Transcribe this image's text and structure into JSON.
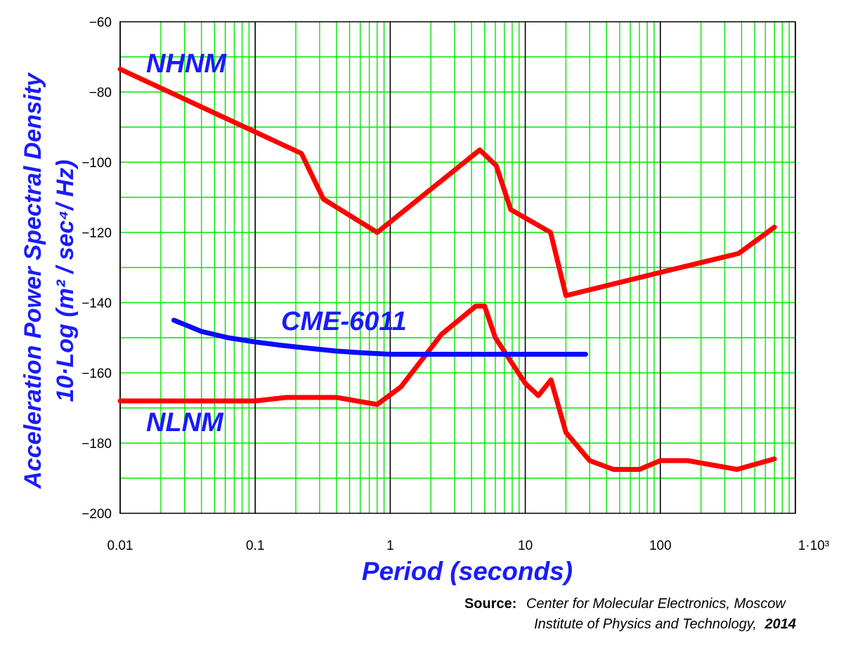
{
  "chart_data": {
    "type": "line",
    "xscale": "log",
    "xlim": [
      0.01,
      1000
    ],
    "ylim": [
      -200,
      -60
    ],
    "grid": true,
    "xlabel": "Period (seconds)",
    "ylabel_line1": "Acceleration Power Spectral Density",
    "ylabel_line2": "10·Log (m² / sec⁴/ Hz)",
    "x_ticks": [
      {
        "value": 0.01,
        "label": "0.01"
      },
      {
        "value": 0.1,
        "label": "0.1"
      },
      {
        "value": 1,
        "label": "1"
      },
      {
        "value": 10,
        "label": "10"
      },
      {
        "value": 100,
        "label": "100"
      },
      {
        "value": 1000,
        "label": "1·10³"
      }
    ],
    "y_ticks": [
      -60,
      -80,
      -100,
      -120,
      -140,
      -160,
      -180,
      -200
    ],
    "series": [
      {
        "name": "NHNM",
        "color": "#ff0000",
        "points": [
          [
            0.01,
            -73.5
          ],
          [
            0.22,
            -97.5
          ],
          [
            0.32,
            -110.5
          ],
          [
            0.8,
            -120
          ],
          [
            4.6,
            -96.5
          ],
          [
            6.1,
            -101
          ],
          [
            7.8,
            -113.5
          ],
          [
            15.4,
            -120
          ],
          [
            20,
            -138
          ],
          [
            110,
            -131
          ],
          [
            380,
            -126
          ],
          [
            700,
            -118.5
          ]
        ]
      },
      {
        "name": "NLNM",
        "color": "#ff0000",
        "points": [
          [
            0.01,
            -168
          ],
          [
            0.1,
            -168
          ],
          [
            0.17,
            -167
          ],
          [
            0.4,
            -167
          ],
          [
            0.8,
            -169
          ],
          [
            1.2,
            -164
          ],
          [
            2.4,
            -149
          ],
          [
            4.3,
            -141
          ],
          [
            5.0,
            -141
          ],
          [
            6.0,
            -150
          ],
          [
            10,
            -163
          ],
          [
            12.5,
            -166.5
          ],
          [
            15.5,
            -162
          ],
          [
            20,
            -177
          ],
          [
            30,
            -185
          ],
          [
            45,
            -187.5
          ],
          [
            70,
            -187.5
          ],
          [
            100,
            -185
          ],
          [
            160,
            -185
          ],
          [
            370,
            -187.5
          ],
          [
            700,
            -184.5
          ]
        ]
      },
      {
        "name": "CME-6011",
        "color": "#0a0aff",
        "points": [
          [
            0.025,
            -145
          ],
          [
            0.04,
            -148.2
          ],
          [
            0.063,
            -150
          ],
          [
            0.1,
            -151.2
          ],
          [
            0.16,
            -152.2
          ],
          [
            0.25,
            -153
          ],
          [
            0.4,
            -153.8
          ],
          [
            0.63,
            -154.3
          ],
          [
            1,
            -154.7
          ],
          [
            2,
            -154.7
          ],
          [
            5,
            -154.7
          ],
          [
            10,
            -154.7
          ],
          [
            20,
            -154.7
          ],
          [
            28,
            -154.7
          ]
        ]
      }
    ],
    "annotations": [
      {
        "text": "NHNM",
        "series": "NHNM"
      },
      {
        "text": "NLNM",
        "series": "NLNM"
      },
      {
        "text": "CME-6011",
        "series": "CME-6011"
      }
    ]
  },
  "source": {
    "line1_prefix": "Source:",
    "line1_italic": "Center for Molecular Electronics,  Moscow",
    "line2_italic": "Institute of Physics and Technology,",
    "line2_bold": "2014"
  }
}
